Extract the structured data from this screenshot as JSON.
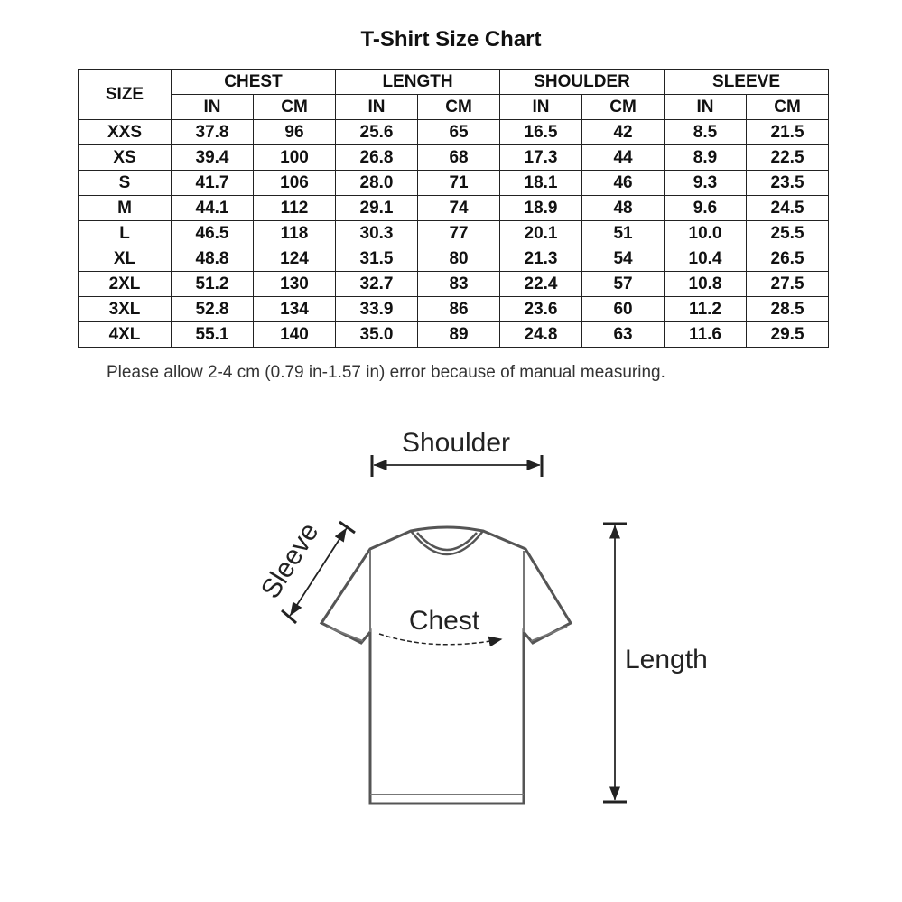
{
  "title": "T-Shirt Size Chart",
  "table": {
    "size_header": "SIZE",
    "groups": [
      "CHEST",
      "LENGTH",
      "SHOULDER",
      "SLEEVE"
    ],
    "units": [
      "IN",
      "CM",
      "IN",
      "CM",
      "IN",
      "CM",
      "IN",
      "CM"
    ],
    "rows": [
      [
        "XXS",
        "37.8",
        "96",
        "25.6",
        "65",
        "16.5",
        "42",
        "8.5",
        "21.5"
      ],
      [
        "XS",
        "39.4",
        "100",
        "26.8",
        "68",
        "17.3",
        "44",
        "8.9",
        "22.5"
      ],
      [
        "S",
        "41.7",
        "106",
        "28.0",
        "71",
        "18.1",
        "46",
        "9.3",
        "23.5"
      ],
      [
        "M",
        "44.1",
        "112",
        "29.1",
        "74",
        "18.9",
        "48",
        "9.6",
        "24.5"
      ],
      [
        "L",
        "46.5",
        "118",
        "30.3",
        "77",
        "20.1",
        "51",
        "10.0",
        "25.5"
      ],
      [
        "XL",
        "48.8",
        "124",
        "31.5",
        "80",
        "21.3",
        "54",
        "10.4",
        "26.5"
      ],
      [
        "2XL",
        "51.2",
        "130",
        "32.7",
        "83",
        "22.4",
        "57",
        "10.8",
        "27.5"
      ],
      [
        "3XL",
        "52.8",
        "134",
        "33.9",
        "86",
        "23.6",
        "60",
        "11.2",
        "28.5"
      ],
      [
        "4XL",
        "55.1",
        "140",
        "35.0",
        "89",
        "24.8",
        "63",
        "11.6",
        "29.5"
      ]
    ]
  },
  "note": "Please allow 2-4 cm (0.79 in-1.57 in) error because of manual measuring.",
  "diagram": {
    "shoulder_label": "Shoulder",
    "sleeve_label": "Sleeve",
    "chest_label": "Chest",
    "length_label": "Length"
  }
}
